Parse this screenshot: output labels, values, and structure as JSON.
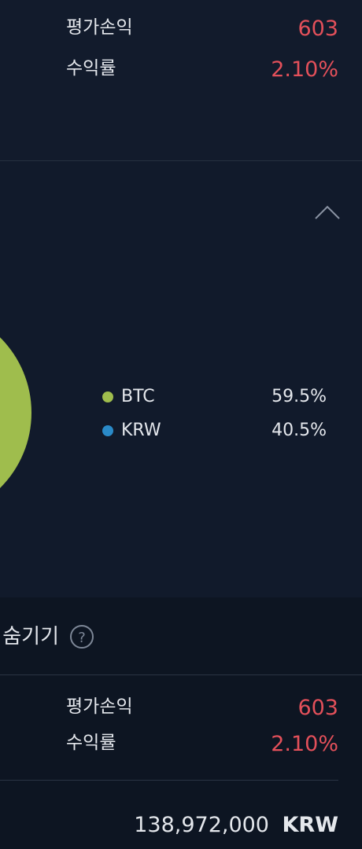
{
  "top_summary": {
    "pnl_label": "평가손익",
    "pnl": "603",
    "rate_label": "수익률",
    "rate": "2.10%"
  },
  "holdings": [
    {
      "name": "BTC",
      "share": "59.5%"
    },
    {
      "name": "KRW",
      "share": "40.5%"
    }
  ],
  "bottom_section": {
    "hide_label": "숨기기",
    "pnl_label": "평가손익",
    "pnl": "603",
    "rate_label": "수익률",
    "rate": "2.10%",
    "total": "138,972,000",
    "currency": "KRW"
  }
}
